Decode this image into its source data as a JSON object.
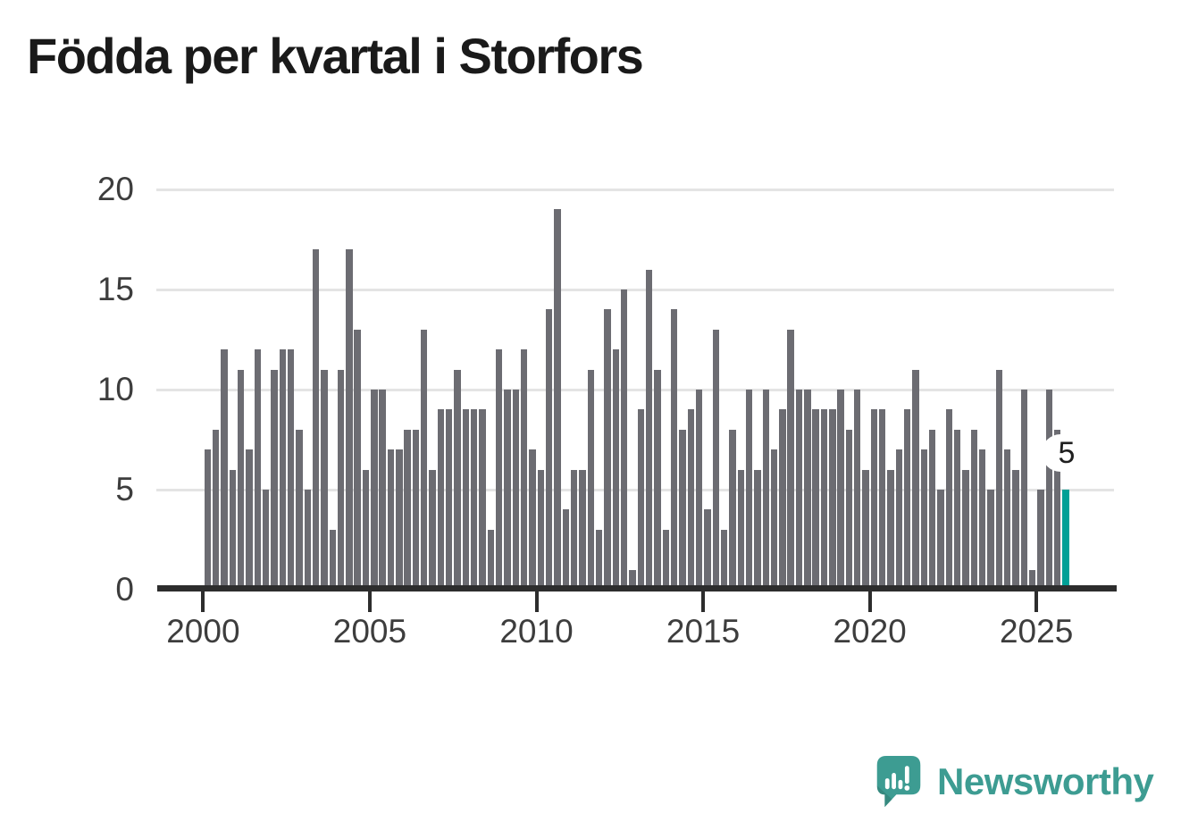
{
  "title": "Födda per kvartal i Storfors",
  "chart_data": {
    "type": "bar",
    "title": "Födda per kvartal i Storfors",
    "x_start_year": 2000,
    "quarters_per_year": 4,
    "values": [
      7,
      8,
      12,
      6,
      11,
      7,
      12,
      5,
      11,
      12,
      12,
      8,
      5,
      17,
      11,
      3,
      11,
      17,
      13,
      6,
      10,
      10,
      7,
      7,
      8,
      8,
      13,
      6,
      9,
      9,
      11,
      9,
      9,
      9,
      3,
      12,
      10,
      10,
      12,
      7,
      6,
      14,
      19,
      4,
      6,
      6,
      11,
      3,
      14,
      12,
      15,
      1,
      9,
      16,
      11,
      3,
      14,
      8,
      9,
      10,
      4,
      13,
      3,
      8,
      6,
      10,
      6,
      10,
      7,
      9,
      13,
      10,
      10,
      9,
      9,
      9,
      10,
      8,
      10,
      6,
      9,
      9,
      6,
      7,
      9,
      11,
      7,
      8,
      5,
      9,
      8,
      6,
      8,
      7,
      5,
      11,
      7,
      6,
      10,
      1,
      5,
      10,
      8,
      5
    ],
    "y_ticks": [
      0,
      5,
      10,
      15,
      20
    ],
    "x_ticks": [
      2000,
      2005,
      2010,
      2015,
      2020,
      2025
    ],
    "ylim": [
      0,
      20
    ],
    "grid": "horizontal",
    "legend": "none",
    "highlight": {
      "index": 103,
      "quarter": "2025 Q4",
      "value": 5,
      "label": "5"
    },
    "colors": {
      "bar": "#6c6c72",
      "highlight": "#00a096",
      "gridline": "#e4e4e4",
      "axis": "#2d2d2d",
      "tick_label": "#3d3d3d",
      "title": "#1a1a1a"
    }
  },
  "footer": {
    "brand": "Newsworthy",
    "brand_color": "#3d9c92"
  }
}
